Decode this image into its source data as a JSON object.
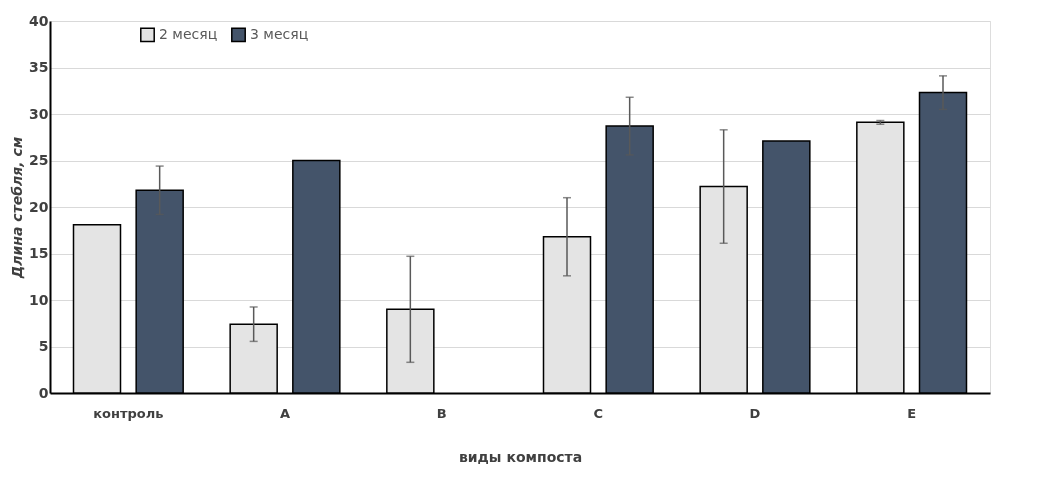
{
  "chart_data": {
    "type": "bar",
    "xlabel": "виды компоста",
    "ylabel": "Длина стебля, см",
    "categories": [
      "контроль",
      "A",
      "B",
      "C",
      "D",
      "E"
    ],
    "series": [
      {
        "name": "2 месяц",
        "color": "#e4e4e4",
        "values": [
          18.1,
          7.4,
          9.0,
          16.8,
          22.2,
          29.1
        ],
        "errors": [
          null,
          1.85,
          5.7,
          4.2,
          6.1,
          0.2
        ]
      },
      {
        "name": "3 месяц",
        "color": "#44546a",
        "values": [
          21.8,
          25.0,
          null,
          28.7,
          27.1,
          32.3
        ],
        "errors": [
          2.6,
          null,
          null,
          3.1,
          null,
          1.8
        ]
      }
    ],
    "ylim": [
      0,
      40
    ],
    "yticks": [
      0,
      5,
      10,
      15,
      20,
      25,
      30,
      35,
      40
    ],
    "grid": "y",
    "legend": "top left"
  }
}
